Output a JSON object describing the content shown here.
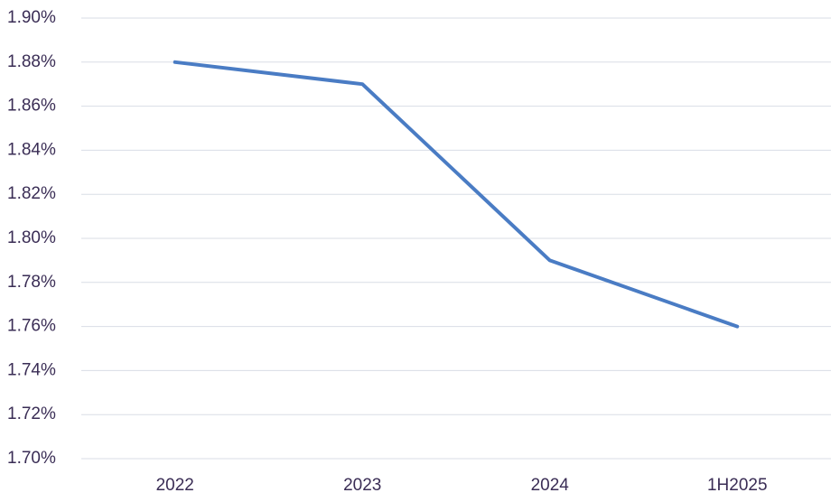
{
  "chart_data": {
    "type": "line",
    "categories": [
      "2022",
      "2023",
      "2024",
      "1H2025"
    ],
    "values": [
      1.88,
      1.87,
      1.79,
      1.76
    ],
    "color": "#4a7cc4",
    "ylim": [
      1.7,
      1.9
    ],
    "yticks": [
      {
        "value": 1.7,
        "label": "1.70%"
      },
      {
        "value": 1.72,
        "label": "1.72%"
      },
      {
        "value": 1.74,
        "label": "1.74%"
      },
      {
        "value": 1.76,
        "label": "1.76%"
      },
      {
        "value": 1.78,
        "label": "1.78%"
      },
      {
        "value": 1.8,
        "label": "1.80%"
      },
      {
        "value": 1.82,
        "label": "1.82%"
      },
      {
        "value": 1.84,
        "label": "1.84%"
      },
      {
        "value": 1.86,
        "label": "1.86%"
      },
      {
        "value": 1.88,
        "label": "1.88%"
      },
      {
        "value": 1.9,
        "label": "1.90%"
      }
    ],
    "grid": true
  }
}
